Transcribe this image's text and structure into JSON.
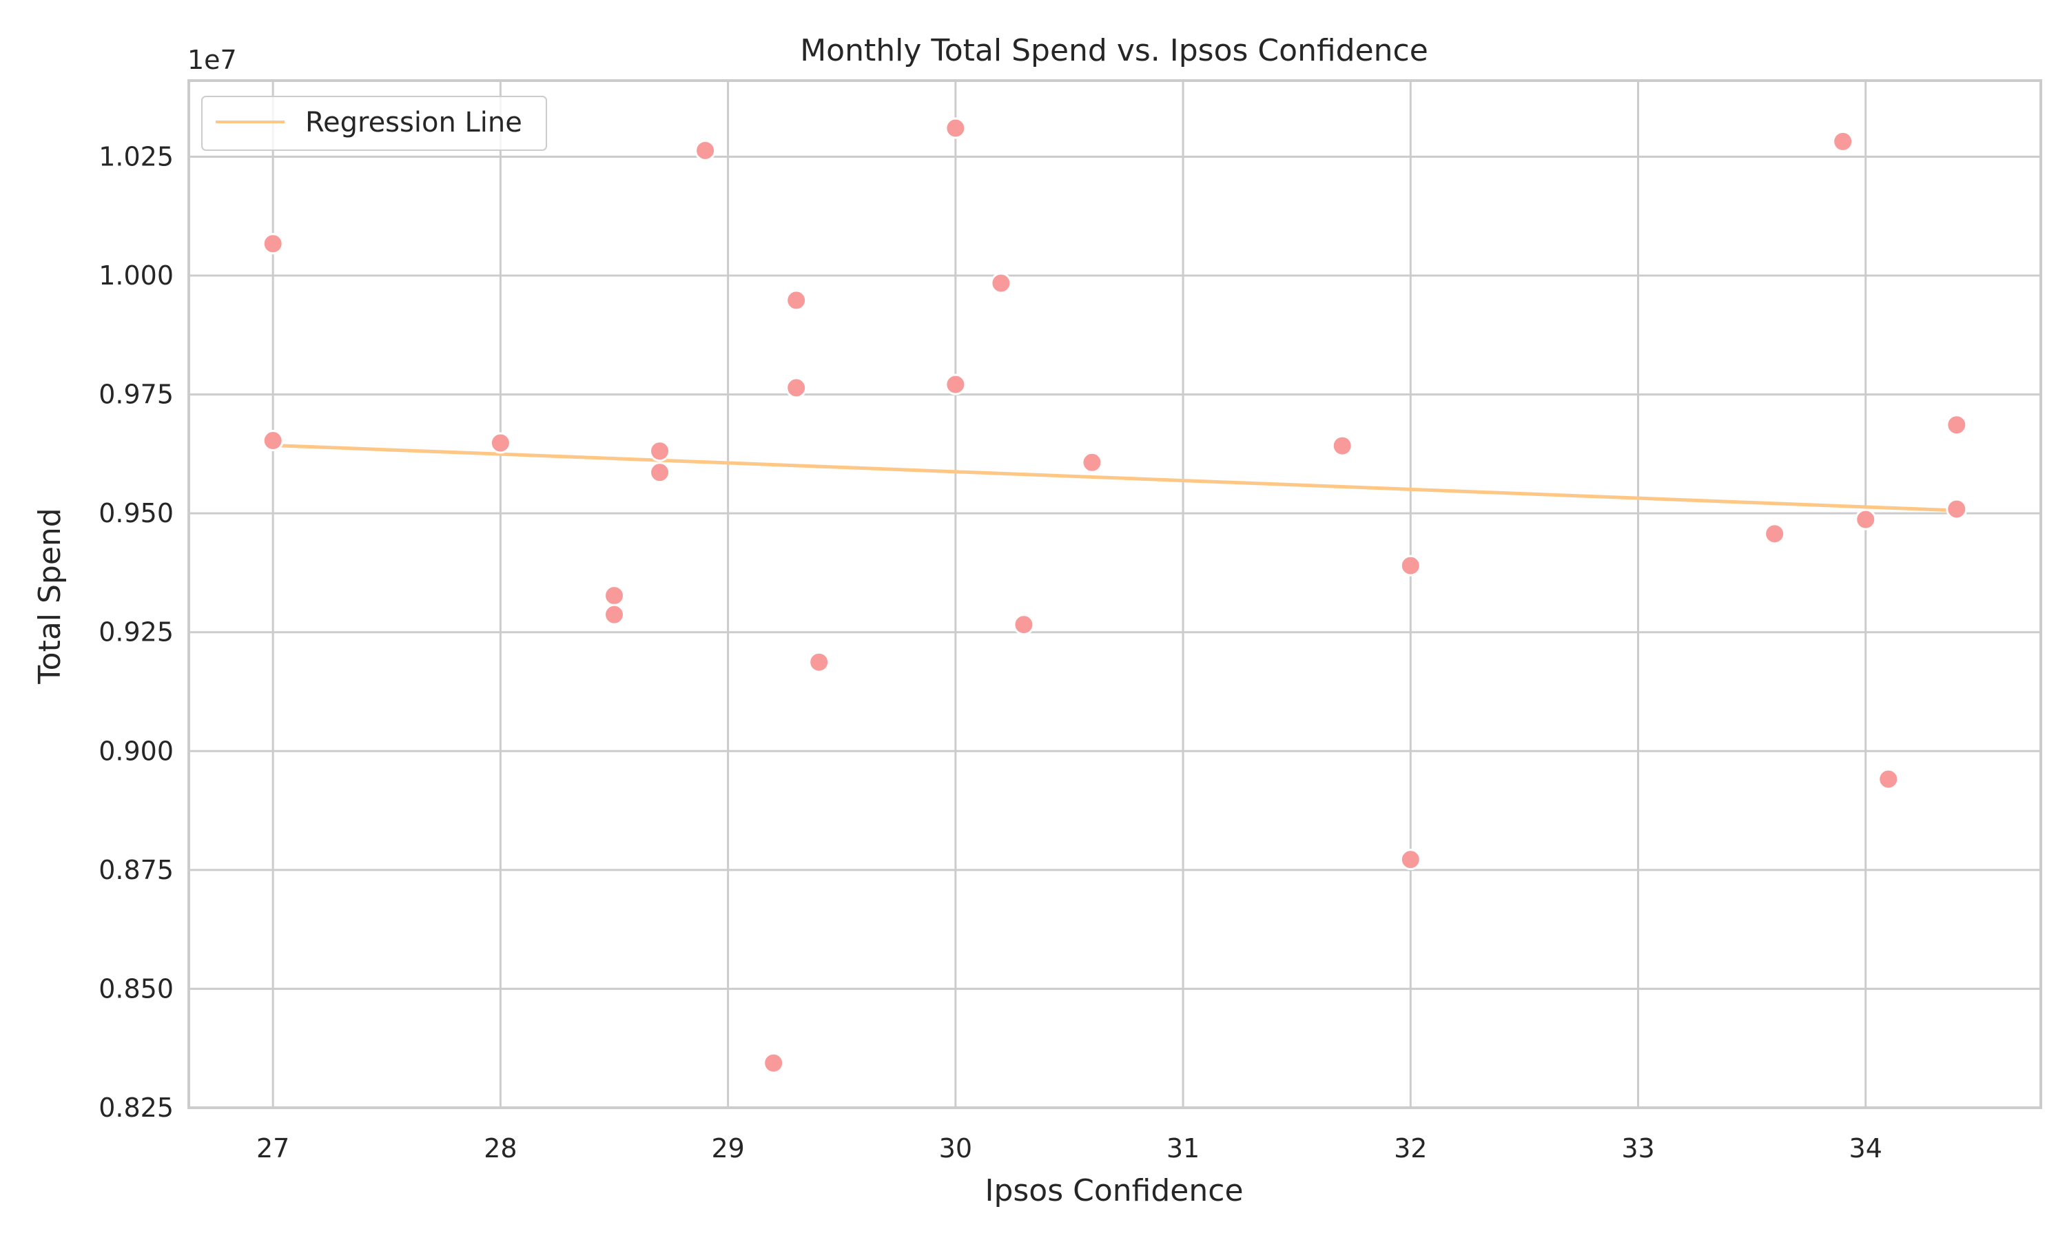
{
  "chart_data": {
    "type": "scatter",
    "title": "Monthly Total Spend vs. Ipsos Confidence",
    "xlabel": "Ipsos Confidence",
    "ylabel": "Total Spend",
    "y_offset_label": "1e7",
    "xlim": [
      26.63,
      34.77
    ],
    "ylim": [
      0.825,
      1.041
    ],
    "x_ticks": [
      27,
      28,
      29,
      30,
      31,
      32,
      33,
      34
    ],
    "x_tick_labels": [
      "27",
      "28",
      "29",
      "30",
      "31",
      "32",
      "33",
      "34"
    ],
    "y_ticks": [
      0.825,
      0.85,
      0.875,
      0.9,
      0.925,
      0.95,
      0.975,
      1.0,
      1.025
    ],
    "y_tick_labels": [
      "0.825",
      "0.850",
      "0.875",
      "0.900",
      "0.925",
      "0.950",
      "0.975",
      "1.000",
      "1.025"
    ],
    "grid": true,
    "legend": {
      "placement": "top-left",
      "entries": [
        {
          "label": "Regression Line",
          "type": "line"
        }
      ]
    },
    "colors": {
      "points": "#F99A9A",
      "regression_line": "#FFC785",
      "grid": "#CCCCCC",
      "frame": "#CCCCCC"
    },
    "series": [
      {
        "x": [
          27.0,
          27.0,
          28.0,
          28.5,
          28.5,
          28.7,
          28.7,
          28.9,
          29.2,
          29.3,
          29.3,
          29.4,
          30.0,
          30.0,
          30.2,
          30.3,
          30.6,
          31.7,
          32.0,
          32.0,
          33.6,
          33.9,
          34.0,
          34.1,
          34.4,
          34.4
        ],
        "y": [
          1.0067,
          0.9653,
          0.9648,
          0.9327,
          0.9287,
          0.9631,
          0.9586,
          1.0263,
          0.8344,
          0.9948,
          0.9764,
          0.9187,
          1.031,
          0.9771,
          0.9984,
          0.9266,
          0.9607,
          0.9642,
          0.939,
          0.8772,
          0.9457,
          1.0282,
          0.9487,
          0.8941,
          0.9686,
          0.9509
        ]
      }
    ],
    "regression_line": {
      "label": "Regression Line",
      "x": [
        27.0,
        34.4
      ],
      "y": [
        0.9643,
        0.9506
      ]
    }
  }
}
